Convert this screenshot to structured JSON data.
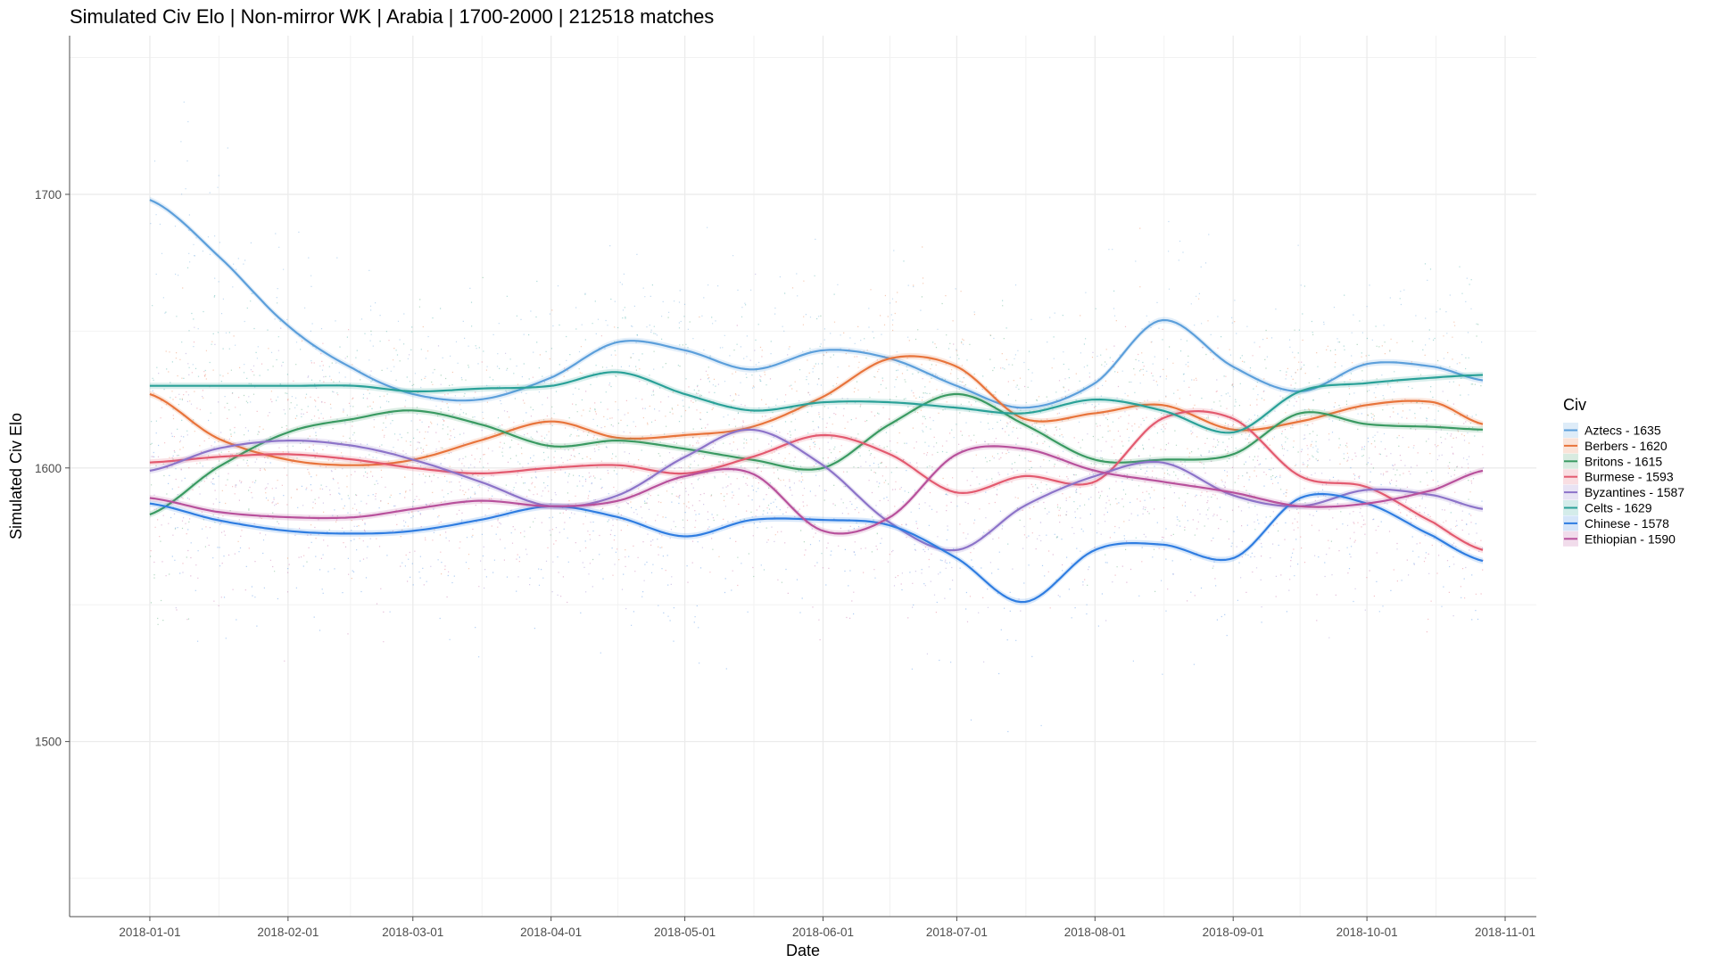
{
  "chart_data": {
    "type": "line",
    "title": "Simulated Civ Elo | Non-mirror WK | Arabia | 1700-2000 | 212518 matches",
    "xlabel": "Date",
    "ylabel": "Simulated Civ Elo",
    "xlim": [
      "2017-12-14",
      "2018-11-08"
    ],
    "ylim": [
      1436,
      1758
    ],
    "x_ticks": [
      "2018-01-01",
      "2018-02-01",
      "2018-03-01",
      "2018-04-01",
      "2018-05-01",
      "2018-06-01",
      "2018-07-01",
      "2018-08-01",
      "2018-09-01",
      "2018-10-01",
      "2018-11-01"
    ],
    "y_ticks": [
      1500,
      1600,
      1700
    ],
    "grid": true,
    "legend": {
      "title": "Civ",
      "position": "right"
    },
    "x": [
      "2018-01-01",
      "2018-01-16",
      "2018-02-01",
      "2018-02-16",
      "2018-03-01",
      "2018-03-16",
      "2018-04-01",
      "2018-04-16",
      "2018-05-01",
      "2018-05-16",
      "2018-06-01",
      "2018-06-16",
      "2018-07-01",
      "2018-07-16",
      "2018-08-01",
      "2018-08-16",
      "2018-09-01",
      "2018-09-16",
      "2018-10-01",
      "2018-10-16",
      "2018-10-27"
    ],
    "series": [
      {
        "name": "Aztecs - 1635",
        "color": "#5c9fdb",
        "values": [
          1698,
          1678,
          1652,
          1636,
          1627,
          1625,
          1633,
          1646,
          1643,
          1636,
          1643,
          1640,
          1630,
          1622,
          1631,
          1654,
          1637,
          1628,
          1638,
          1637,
          1632
        ]
      },
      {
        "name": "Berbers - 1620",
        "color": "#e8743b",
        "values": [
          1627,
          1611,
          1603,
          1601,
          1603,
          1610,
          1617,
          1611,
          1612,
          1615,
          1626,
          1640,
          1637,
          1618,
          1620,
          1623,
          1614,
          1617,
          1623,
          1624,
          1616
        ]
      },
      {
        "name": "Britons - 1615",
        "color": "#3a9a62",
        "values": [
          1583,
          1600,
          1613,
          1618,
          1621,
          1616,
          1608,
          1610,
          1607,
          1603,
          1600,
          1616,
          1627,
          1616,
          1603,
          1603,
          1605,
          1620,
          1616,
          1615,
          1614
        ]
      },
      {
        "name": "Burmese - 1593",
        "color": "#e35a6f",
        "values": [
          1602,
          1604,
          1605,
          1603,
          1600,
          1598,
          1600,
          1601,
          1598,
          1604,
          1612,
          1605,
          1591,
          1597,
          1595,
          1618,
          1618,
          1597,
          1593,
          1580,
          1570
        ]
      },
      {
        "name": "Byzantines - 1587",
        "color": "#8d74c9",
        "values": [
          1599,
          1607,
          1610,
          1608,
          1603,
          1595,
          1586,
          1590,
          1604,
          1614,
          1601,
          1580,
          1570,
          1586,
          1597,
          1602,
          1590,
          1586,
          1592,
          1590,
          1585
        ]
      },
      {
        "name": "Celts - 1629",
        "color": "#2aa198",
        "values": [
          1630,
          1630,
          1630,
          1630,
          1628,
          1629,
          1630,
          1635,
          1627,
          1621,
          1624,
          1624,
          1622,
          1620,
          1625,
          1621,
          1613,
          1628,
          1631,
          1633,
          1634
        ]
      },
      {
        "name": "Chinese - 1578",
        "color": "#2f7de1",
        "values": [
          1587,
          1581,
          1577,
          1576,
          1577,
          1581,
          1586,
          1582,
          1575,
          1581,
          1581,
          1579,
          1567,
          1551,
          1570,
          1572,
          1567,
          1589,
          1587,
          1575,
          1566
        ]
      },
      {
        "name": "Ethiopian - 1590",
        "color": "#b8519c",
        "values": [
          1589,
          1584,
          1582,
          1582,
          1585,
          1588,
          1586,
          1588,
          1597,
          1598,
          1577,
          1582,
          1605,
          1607,
          1599,
          1595,
          1591,
          1586,
          1587,
          1592,
          1599
        ]
      }
    ]
  }
}
